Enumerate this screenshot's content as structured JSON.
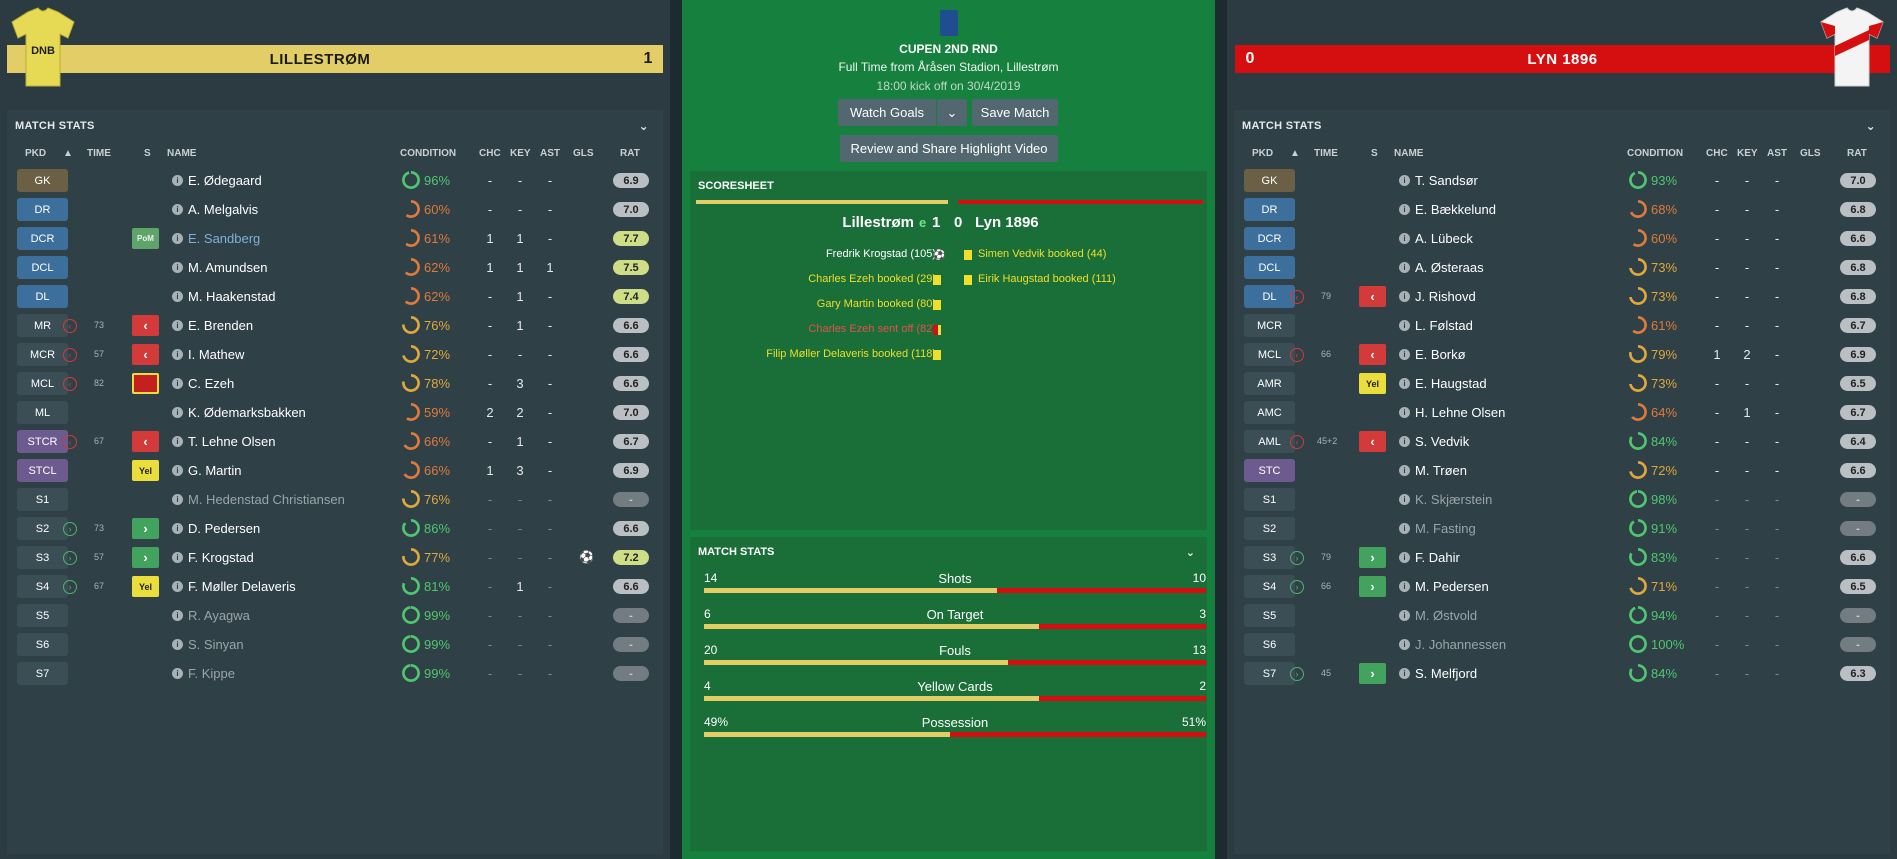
{
  "colors": {
    "home": "#e3cd66",
    "away": "#d50f0f",
    "center_bg": "#16813f"
  },
  "home": {
    "name": "LILLESTRØM",
    "score": "1",
    "stats_title": "MATCH STATS",
    "players": [
      {
        "pos": "GK",
        "cls": "gk",
        "name": "E. Ødegaard",
        "cond": "96%",
        "chc": "-",
        "key": "-",
        "ast": "-",
        "gls": "",
        "rat": "6.9"
      },
      {
        "pos": "DR",
        "cls": "def",
        "name": "A. Melgalvis",
        "cond": "60%",
        "chc": "-",
        "key": "-",
        "ast": "-",
        "gls": "",
        "rat": "7.0"
      },
      {
        "pos": "DCR",
        "cls": "def",
        "name": "E. Sandberg",
        "cond": "61%",
        "chc": "1",
        "key": "1",
        "ast": "-",
        "gls": "",
        "rat": "7.7",
        "badge": "PoM"
      },
      {
        "pos": "DCL",
        "cls": "def",
        "name": "M. Amundsen",
        "cond": "62%",
        "chc": "1",
        "key": "1",
        "ast": "1",
        "gls": "",
        "rat": "7.5"
      },
      {
        "pos": "DL",
        "cls": "def",
        "name": "M. Haakenstad",
        "cond": "62%",
        "chc": "-",
        "key": "1",
        "ast": "-",
        "gls": "",
        "rat": "7.4"
      },
      {
        "pos": "MR",
        "cls": "mid",
        "name": "E. Brenden",
        "cond": "76%",
        "chc": "-",
        "key": "1",
        "ast": "-",
        "gls": "",
        "rat": "6.6",
        "time": "73"
      },
      {
        "pos": "MCR",
        "cls": "mid",
        "name": "I. Mathew",
        "cond": "72%",
        "chc": "-",
        "key": "-",
        "ast": "-",
        "gls": "",
        "rat": "6.6",
        "time": "57"
      },
      {
        "pos": "MCL",
        "cls": "mid",
        "name": "C. Ezeh",
        "cond": "78%",
        "chc": "-",
        "key": "3",
        "ast": "-",
        "gls": "",
        "rat": "6.6",
        "time": "82"
      },
      {
        "pos": "ML",
        "cls": "mid",
        "name": "K. Ødemarksbakken",
        "cond": "59%",
        "chc": "2",
        "key": "2",
        "ast": "-",
        "gls": "",
        "rat": "7.0"
      },
      {
        "pos": "STCR",
        "cls": "str",
        "name": "T. Lehne Olsen",
        "cond": "66%",
        "chc": "-",
        "key": "1",
        "ast": "-",
        "gls": "",
        "rat": "6.7",
        "time": "67"
      },
      {
        "pos": "STCL",
        "cls": "str",
        "name": "G. Martin",
        "cond": "66%",
        "chc": "1",
        "key": "3",
        "ast": "-",
        "gls": "",
        "rat": "6.9",
        "badge": "Yel"
      },
      {
        "pos": "S1",
        "cls": "sub",
        "name": "M. Hedenstad Christiansen",
        "cond": "76%",
        "chc": "-",
        "key": "-",
        "ast": "-",
        "gls": "",
        "rat": "-"
      },
      {
        "pos": "S2",
        "cls": "sub",
        "name": "D. Pedersen",
        "cond": "86%",
        "chc": "-",
        "key": "-",
        "ast": "-",
        "gls": "",
        "rat": "6.6",
        "time": "73"
      },
      {
        "pos": "S3",
        "cls": "sub",
        "name": "F. Krogstad",
        "cond": "77%",
        "chc": "-",
        "key": "-",
        "ast": "-",
        "gls": "⚽",
        "rat": "7.2",
        "time": "57"
      },
      {
        "pos": "S4",
        "cls": "sub",
        "name": "F. Møller Delaveris",
        "cond": "81%",
        "chc": "-",
        "key": "1",
        "ast": "-",
        "gls": "",
        "rat": "6.6",
        "time": "67",
        "badge": "Yel"
      },
      {
        "pos": "S5",
        "cls": "sub",
        "name": "R. Ayagwa",
        "cond": "99%",
        "chc": "-",
        "key": "-",
        "ast": "-",
        "gls": "",
        "rat": "-"
      },
      {
        "pos": "S6",
        "cls": "sub",
        "name": "S. Sinyan",
        "cond": "99%",
        "chc": "-",
        "key": "-",
        "ast": "-",
        "gls": "",
        "rat": "-"
      },
      {
        "pos": "S7",
        "cls": "sub",
        "name": "F. Kippe",
        "cond": "99%",
        "chc": "-",
        "key": "-",
        "ast": "-",
        "gls": "",
        "rat": "-"
      }
    ]
  },
  "away": {
    "name": "LYN 1896",
    "score": "0",
    "stats_title": "MATCH STATS",
    "players": [
      {
        "pos": "GK",
        "cls": "gk",
        "name": "T. Sandsør",
        "cond": "93%",
        "chc": "-",
        "key": "-",
        "ast": "-",
        "gls": "",
        "rat": "7.0"
      },
      {
        "pos": "DR",
        "cls": "def",
        "name": "E. Bækkelund",
        "cond": "68%",
        "chc": "-",
        "key": "-",
        "ast": "-",
        "gls": "",
        "rat": "6.8"
      },
      {
        "pos": "DCR",
        "cls": "def",
        "name": "A. Lübeck",
        "cond": "60%",
        "chc": "-",
        "key": "-",
        "ast": "-",
        "gls": "",
        "rat": "6.6"
      },
      {
        "pos": "DCL",
        "cls": "def",
        "name": "A. Østeraas",
        "cond": "73%",
        "chc": "-",
        "key": "-",
        "ast": "-",
        "gls": "",
        "rat": "6.8"
      },
      {
        "pos": "DL",
        "cls": "def",
        "name": "J. Rishovd",
        "cond": "73%",
        "chc": "-",
        "key": "-",
        "ast": "-",
        "gls": "",
        "rat": "6.8",
        "time": "79"
      },
      {
        "pos": "MCR",
        "cls": "mid",
        "name": "L. Følstad",
        "cond": "61%",
        "chc": "-",
        "key": "-",
        "ast": "-",
        "gls": "",
        "rat": "6.7"
      },
      {
        "pos": "MCL",
        "cls": "mid",
        "name": "E. Borkø",
        "cond": "79%",
        "chc": "1",
        "key": "2",
        "ast": "-",
        "gls": "",
        "rat": "6.9",
        "time": "66"
      },
      {
        "pos": "AMR",
        "cls": "mid",
        "name": "E. Haugstad",
        "cond": "73%",
        "chc": "-",
        "key": "-",
        "ast": "-",
        "gls": "",
        "rat": "6.5",
        "badge": "Yel"
      },
      {
        "pos": "AMC",
        "cls": "mid",
        "name": "H. Lehne Olsen",
        "cond": "64%",
        "chc": "-",
        "key": "1",
        "ast": "-",
        "gls": "",
        "rat": "6.7"
      },
      {
        "pos": "AML",
        "cls": "mid",
        "name": "S. Vedvik",
        "cond": "84%",
        "chc": "-",
        "key": "-",
        "ast": "-",
        "gls": "",
        "rat": "6.4",
        "time": "45+2"
      },
      {
        "pos": "STC",
        "cls": "str",
        "name": "M. Trøen",
        "cond": "72%",
        "chc": "-",
        "key": "-",
        "ast": "-",
        "gls": "",
        "rat": "6.6"
      },
      {
        "pos": "S1",
        "cls": "sub",
        "name": "K. Skjærstein",
        "cond": "98%",
        "chc": "-",
        "key": "-",
        "ast": "-",
        "gls": "",
        "rat": "-"
      },
      {
        "pos": "S2",
        "cls": "sub",
        "name": "M. Fasting",
        "cond": "91%",
        "chc": "-",
        "key": "-",
        "ast": "-",
        "gls": "",
        "rat": "-"
      },
      {
        "pos": "S3",
        "cls": "sub",
        "name": "F. Dahir",
        "cond": "83%",
        "chc": "-",
        "key": "-",
        "ast": "-",
        "gls": "",
        "rat": "6.6",
        "time": "79"
      },
      {
        "pos": "S4",
        "cls": "sub",
        "name": "M. Pedersen",
        "cond": "71%",
        "chc": "-",
        "key": "-",
        "ast": "-",
        "gls": "",
        "rat": "6.5",
        "time": "66"
      },
      {
        "pos": "S5",
        "cls": "sub",
        "name": "M. Østvold",
        "cond": "94%",
        "chc": "-",
        "key": "-",
        "ast": "-",
        "gls": "",
        "rat": "-"
      },
      {
        "pos": "S6",
        "cls": "sub",
        "name": "J. Johannessen",
        "cond": "100%",
        "chc": "-",
        "key": "-",
        "ast": "-",
        "gls": "",
        "rat": "-"
      },
      {
        "pos": "S7",
        "cls": "sub",
        "name": "S. Melfjord",
        "cond": "84%",
        "chc": "-",
        "key": "-",
        "ast": "-",
        "gls": "",
        "rat": "6.3",
        "time": "45"
      }
    ]
  },
  "columns": {
    "pkd": "PKD",
    "time": "TIME",
    "s": "S",
    "name": "NAME",
    "condition": "CONDITION",
    "chc": "CHC",
    "key": "KEY",
    "ast": "AST",
    "gls": "GLS",
    "rat": "RAT"
  },
  "center": {
    "competition": "CUPEN 2ND RND",
    "venue": "Full Time from Åråsen Stadion, Lillestrøm",
    "kickoff": "18:00 kick off on 30/4/2019",
    "watch_goals": "Watch Goals",
    "save_match": "Save Match",
    "review": "Review and Share Highlight Video",
    "scoresheet_title": "SCORESHEET",
    "home_team": "Lillestrøm",
    "home_extra": "e",
    "home_score": "1",
    "away_score": "0",
    "away_team": "Lyn 1896",
    "home_events": [
      {
        "text": "Fredrik Krogstad (105)",
        "type": "goal"
      },
      {
        "text": "Charles Ezeh booked (29)",
        "type": "yellow"
      },
      {
        "text": "Gary Martin booked (80)",
        "type": "yellow"
      },
      {
        "text": "Charles Ezeh sent off (82)",
        "type": "red"
      },
      {
        "text": "Filip Møller Delaveris booked (118)",
        "type": "yellow"
      }
    ],
    "away_events": [
      {
        "text": "Simen Vedvik booked (44)",
        "type": "yellow"
      },
      {
        "text": "Eirik Haugstad booked (111)",
        "type": "yellow"
      }
    ],
    "match_stats_title": "MATCH STATS",
    "match_stats": [
      {
        "label": "Shots",
        "home": "14",
        "away": "10",
        "home_frac": 0.583
      },
      {
        "label": "On Target",
        "home": "6",
        "away": "3",
        "home_frac": 0.667
      },
      {
        "label": "Fouls",
        "home": "20",
        "away": "13",
        "home_frac": 0.606
      },
      {
        "label": "Yellow Cards",
        "home": "4",
        "away": "2",
        "home_frac": 0.667
      },
      {
        "label": "Possession",
        "home": "49%",
        "away": "51%",
        "home_frac": 0.49
      }
    ]
  }
}
